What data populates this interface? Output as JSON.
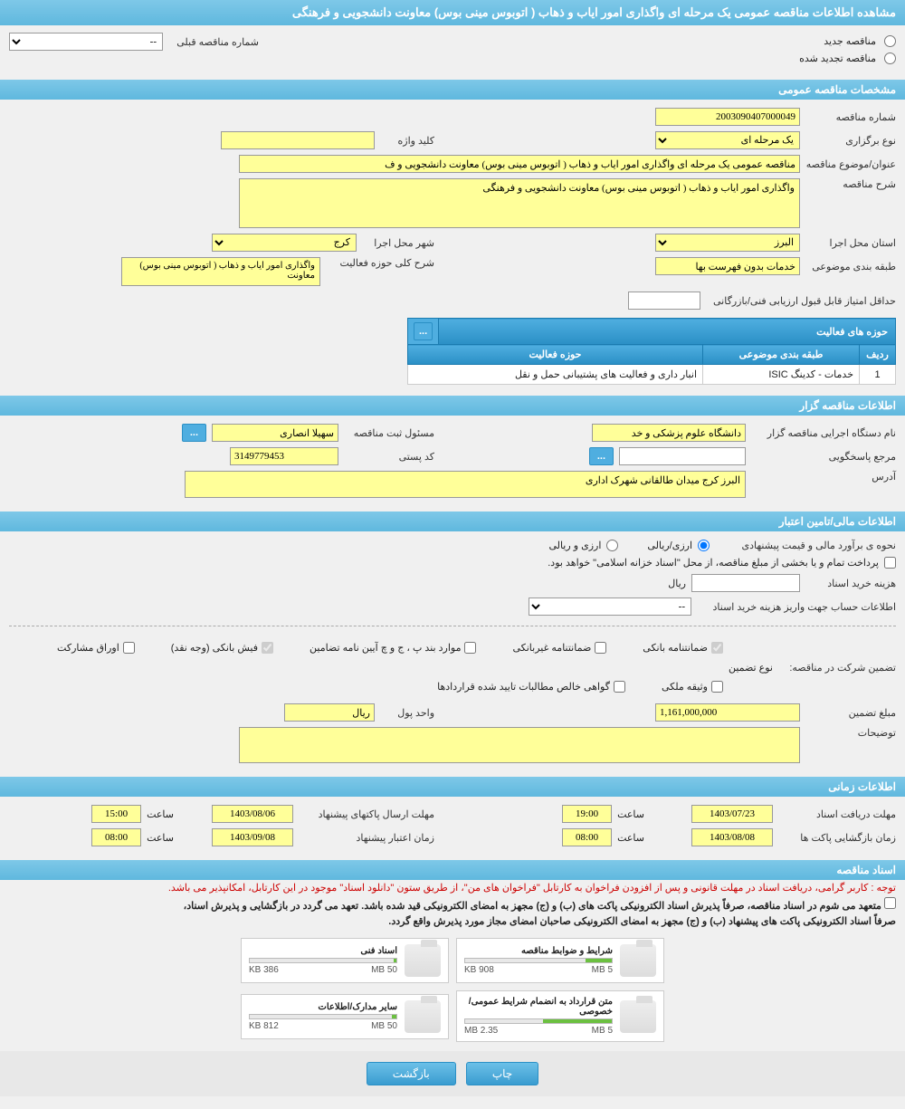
{
  "page_title": "مشاهده اطلاعات مناقصه عمومی یک مرحله ای واگذاری امور ایاب و ذهاب ( اتوبوس مینی بوس) معاونت دانشجویی و فرهنگی",
  "options": {
    "new_tender": "مناقصه جدید",
    "renewed_tender": "مناقصه تجدید شده",
    "prev_tender_label": "شماره مناقصه قبلی",
    "prev_tender_value": "--"
  },
  "sections": {
    "general": "مشخصات مناقصه عمومی",
    "organizer": "اطلاعات مناقصه گزار",
    "financial": "اطلاعات مالی/تامین اعتبار",
    "timing": "اطلاعات زمانی",
    "documents": "اسناد مناقصه"
  },
  "general": {
    "tender_no_label": "شماره مناقصه",
    "tender_no": "2003090407000049",
    "type_label": "نوع برگزاری",
    "type": "یک مرحله ای",
    "keyword_label": "کلید واژه",
    "keyword": "",
    "subject_label": "عنوان/موضوع مناقصه",
    "subject": "مناقصه عمومی یک مرحله ای واگذاری امور ایاب و ذهاب ( اتوبوس مینی بوس) معاونت دانشجویی و ف",
    "desc_label": "شرح مناقصه",
    "desc": "واگذاری امور ایاب و ذهاب ( اتوبوس مینی بوس) معاونت دانشجویی و فرهنگی",
    "province_label": "استان محل اجرا",
    "province": "البرز",
    "city_label": "شهر محل اجرا",
    "city": "کرج",
    "category_label": "طبقه بندی موضوعی",
    "category": "خدمات بدون فهرست بها",
    "scope_label": "شرح کلی حوزه فعالیت",
    "scope": "واگذاری امور ایاب و ذهاب ( اتوبوس مینی بوس) معاونت",
    "min_score_label": "حداقل امتیاز قابل قبول ارزیابی فنی/بازرگانی",
    "min_score": ""
  },
  "activity_table": {
    "title": "حوزه های فعالیت",
    "headers": {
      "row": "ردیف",
      "category": "طبقه بندی موضوعی",
      "field": "حوزه فعالیت"
    },
    "rows": [
      {
        "idx": "1",
        "category": "خدمات - کدینگ ISIC",
        "field": "انبار داری و فعالیت های پشتیبانی حمل و نقل"
      }
    ]
  },
  "organizer": {
    "name_label": "نام دستگاه اجرایی مناقصه گزار",
    "name": "دانشگاه علوم پزشکی و خد",
    "responsible_label": "مسئول ثبت مناقصه",
    "responsible": "سهیلا انصاری",
    "ref_label": "مرجع پاسخگویی",
    "ref": "",
    "postal_label": "کد پستی",
    "postal": "3149779453",
    "address_label": "آدرس",
    "address": "البرز کرج میدان طالقانی شهرک اداری"
  },
  "financial": {
    "est_label": "نحوه ی برآورد مالی و قیمت پیشنهادی",
    "currency_opt": "ارزی/ریالی",
    "both_opt": "ارزی و ریالی",
    "payment_note": "پرداخت تمام و یا بخشی از مبلغ مناقصه، از محل \"اسناد خزانه اسلامی\" خواهد بود.",
    "doc_cost_label": "هزینه خرید اسناد",
    "doc_cost": "",
    "rial": "ریال",
    "account_label": "اطلاعات حساب جهت واریز هزینه خرید اسناد",
    "account_value": "--",
    "guarantee_label": "تضمین شرکت در مناقصه:",
    "guarantee_type_label": "نوع تضمین",
    "g1": "ضمانتنامه بانکی",
    "g2": "ضمانتنامه غیربانکی",
    "g3": "موارد بند پ ، ج و چ آیین نامه تضامین",
    "g4": "فیش بانکی (وجه نقد)",
    "g5": "اوراق مشارکت",
    "g6": "وثیقه ملکی",
    "g7": "گواهی خالص مطالبات تایید شده قراردادها",
    "amount_label": "مبلغ تضمین",
    "amount": "1,161,000,000",
    "unit_label": "واحد پول",
    "unit": "ریال",
    "notes_label": "توضیحات",
    "notes": ""
  },
  "timing": {
    "receive_label": "مهلت دریافت اسناد",
    "receive_date": "1403/07/23",
    "receive_time_label": "ساعت",
    "receive_time": "19:00",
    "send_label": "مهلت ارسال پاکتهای پیشنهاد",
    "send_date": "1403/08/06",
    "send_time": "15:00",
    "open_label": "زمان بازگشایی پاکت ها",
    "open_date": "1403/08/08",
    "open_time": "08:00",
    "valid_label": "زمان اعتبار پیشنهاد",
    "valid_date": "1403/09/08",
    "valid_time": "08:00"
  },
  "documents": {
    "note_red": "توجه : کاربر گرامی، دریافت اسناد در مهلت قانونی و پس از افزودن فراخوان به کارتابل \"فراخوان های من\"، از طریق ستون \"دانلود اسناد\" موجود در این کارتابل، امکانپذیر می باشد.",
    "note_black1": "متعهد می شوم در اسناد مناقصه، صرفاً پذیرش اسناد الکترونیکی پاکت های (ب) و (ج) مجهز به امضای الکترونیکی قید شده باشد. تعهد می گردد در بازگشایی و پذیرش اسناد،",
    "note_black2": "صرفاً اسناد الکترونیکی پاکت های پیشنهاد (ب) و (ج) مجهز به امضای الکترونیکی صاحبان امضای مجاز مورد پذیرش واقع گردد.",
    "files": [
      {
        "title": "شرایط و ضوابط مناقصه",
        "used": "908 KB",
        "total": "5 MB",
        "pct": 18
      },
      {
        "title": "اسناد فنی",
        "used": "386 KB",
        "total": "50 MB",
        "pct": 2
      },
      {
        "title": "متن قرارداد به انضمام شرایط عمومی/خصوصی",
        "used": "2.35 MB",
        "total": "5 MB",
        "pct": 47
      },
      {
        "title": "سایر مدارک/اطلاعات",
        "used": "812 KB",
        "total": "50 MB",
        "pct": 3
      }
    ]
  },
  "buttons": {
    "print": "چاپ",
    "back": "بازگشت",
    "dots": "..."
  },
  "colors": {
    "header_bg": "#5fb8de",
    "field_bg": "#ffff99",
    "btn_bg": "#4faee0",
    "progress": "#6bc040"
  }
}
